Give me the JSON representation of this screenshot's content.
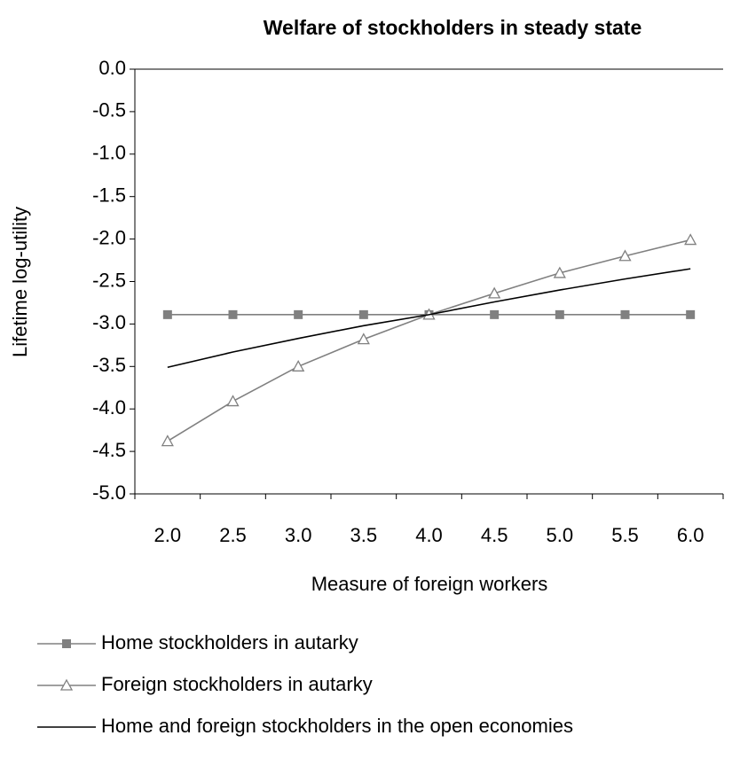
{
  "chart_data": {
    "type": "line",
    "title": "Welfare of stockholders in steady state",
    "x_label": "Measure of foreign workers",
    "y_label": "Lifetime log-utility",
    "categories": [
      "2.0",
      "2.5",
      "3.0",
      "3.5",
      "4.0",
      "4.5",
      "5.0",
      "5.5",
      "6.0"
    ],
    "ylim": [
      -5,
      0
    ],
    "yticks": [
      {
        "value": 0,
        "label": "0.0"
      },
      {
        "value": -0.5,
        "label": "-0.5"
      },
      {
        "value": -1,
        "label": "-1.0"
      },
      {
        "value": -1.5,
        "label": "-1.5"
      },
      {
        "value": -2,
        "label": "-2.0"
      },
      {
        "value": -2.5,
        "label": "-2.5"
      },
      {
        "value": -3,
        "label": "-3.0"
      },
      {
        "value": -3.5,
        "label": "-3.5"
      },
      {
        "value": -4,
        "label": "-4.0"
      },
      {
        "value": -4.5,
        "label": "-4.5"
      },
      {
        "value": -5,
        "label": "-5.0"
      }
    ],
    "series": [
      {
        "name": "Home stockholders in autarky",
        "color": "#808080",
        "marker": "square",
        "values": [
          -2.89,
          -2.89,
          -2.89,
          -2.89,
          -2.89,
          -2.89,
          -2.89,
          -2.89,
          -2.89
        ]
      },
      {
        "name": "Foreign stockholders in autarky",
        "color": "#808080",
        "marker": "triangle",
        "values": [
          -4.38,
          -3.91,
          -3.5,
          -3.18,
          -2.89,
          -2.64,
          -2.4,
          -2.2,
          -2.01
        ]
      },
      {
        "name": "Home and foreign stockholders in the open economies",
        "color": "#000000",
        "marker": "none",
        "values": [
          -3.51,
          -3.33,
          -3.17,
          -3.02,
          -2.89,
          -2.74,
          -2.6,
          -2.47,
          -2.35
        ]
      }
    ]
  }
}
